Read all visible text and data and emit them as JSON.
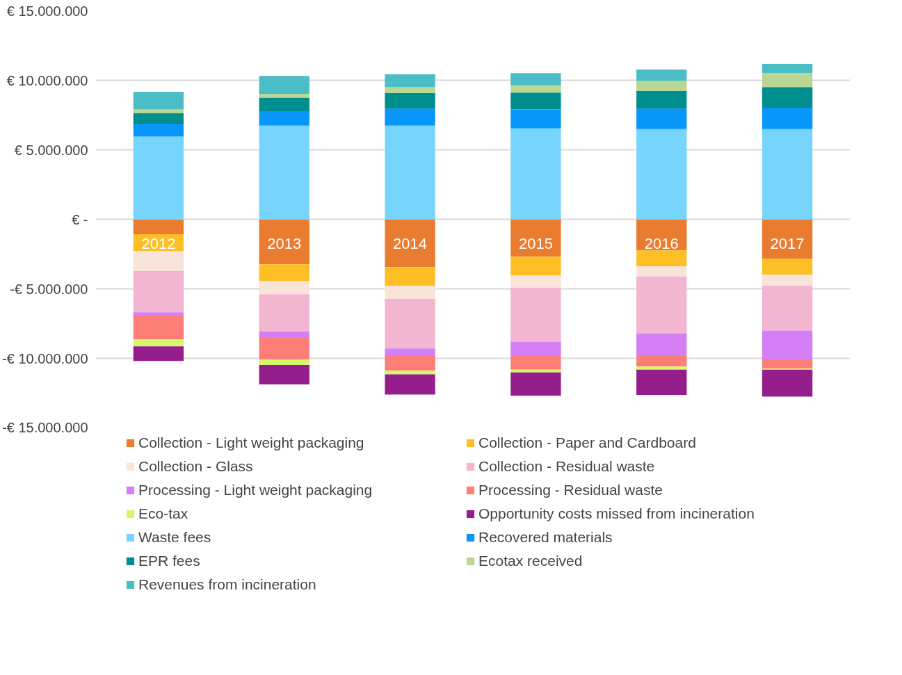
{
  "chart_data": {
    "type": "bar",
    "stacked": true,
    "categories": [
      "2012",
      "2013",
      "2014",
      "2015",
      "2016",
      "2017"
    ],
    "series": [
      {
        "name": "Collection - Light weight packaging",
        "color": "#ea7c30",
        "values": [
          -1080000,
          -3240000,
          -3440000,
          -2700000,
          -2240000,
          -2840000
        ]
      },
      {
        "name": "Collection - Paper and Cardboard",
        "color": "#fdbf26",
        "values": [
          -1220000,
          -1210000,
          -1340000,
          -1350000,
          -1140000,
          -1140000
        ]
      },
      {
        "name": "Collection - Glass",
        "color": "#f8e4d8",
        "values": [
          -1410000,
          -940000,
          -940000,
          -860000,
          -730000,
          -800000
        ]
      },
      {
        "name": "Collection - Residual waste",
        "color": "#f2b6d0",
        "values": [
          -2980000,
          -2680000,
          -3570000,
          -3890000,
          -4090000,
          -3220000
        ]
      },
      {
        "name": "Processing - Light weight packaging",
        "color": "#d57ff6",
        "values": [
          -230000,
          -460000,
          -530000,
          -1020000,
          -1620000,
          -2080000
        ]
      },
      {
        "name": "Processing - Residual waste",
        "color": "#fd7e76",
        "values": [
          -1730000,
          -1550000,
          -1060000,
          -990000,
          -770000,
          -660000
        ]
      },
      {
        "name": "Eco-tax",
        "color": "#d5f76c",
        "values": [
          -490000,
          -400000,
          -270000,
          -200000,
          -220000,
          -70000
        ]
      },
      {
        "name": "Opportunity costs missed from incineration",
        "color": "#941e8c",
        "values": [
          -1050000,
          -1390000,
          -1450000,
          -1680000,
          -1810000,
          -1940000
        ]
      },
      {
        "name": "Waste fees",
        "color": "#77d5fd",
        "values": [
          5950000,
          6740000,
          6740000,
          6540000,
          6490000,
          6490000
        ]
      },
      {
        "name": "Recovered materials",
        "color": "#0797fb",
        "values": [
          920000,
          1040000,
          1220000,
          1360000,
          1470000,
          1530000
        ]
      },
      {
        "name": "EPR fees",
        "color": "#008d8e",
        "values": [
          760000,
          970000,
          1130000,
          1210000,
          1280000,
          1490000
        ]
      },
      {
        "name": "Ecotax received",
        "color": "#b9d693",
        "values": [
          270000,
          270000,
          420000,
          530000,
          720000,
          1000000
        ]
      },
      {
        "name": "Revenues from incineration",
        "color": "#4bbdc6",
        "values": [
          1270000,
          1290000,
          930000,
          870000,
          820000,
          670000
        ]
      }
    ],
    "ylim": [
      -15000000,
      15000000
    ],
    "yticks": [
      {
        "value": -15000000,
        "label": "-€ 15.000.000"
      },
      {
        "value": -10000000,
        "label": "-€ 10.000.000"
      },
      {
        "value": -5000000,
        "label": "-€ 5.000.000"
      },
      {
        "value": 0,
        "label": "€ -"
      },
      {
        "value": 5000000,
        "label": "€ 5.000.000"
      },
      {
        "value": 10000000,
        "label": "€ 10.000.000"
      },
      {
        "value": 15000000,
        "label": "€ 15.000.000"
      }
    ],
    "grid": "y",
    "legend": "bottom"
  }
}
